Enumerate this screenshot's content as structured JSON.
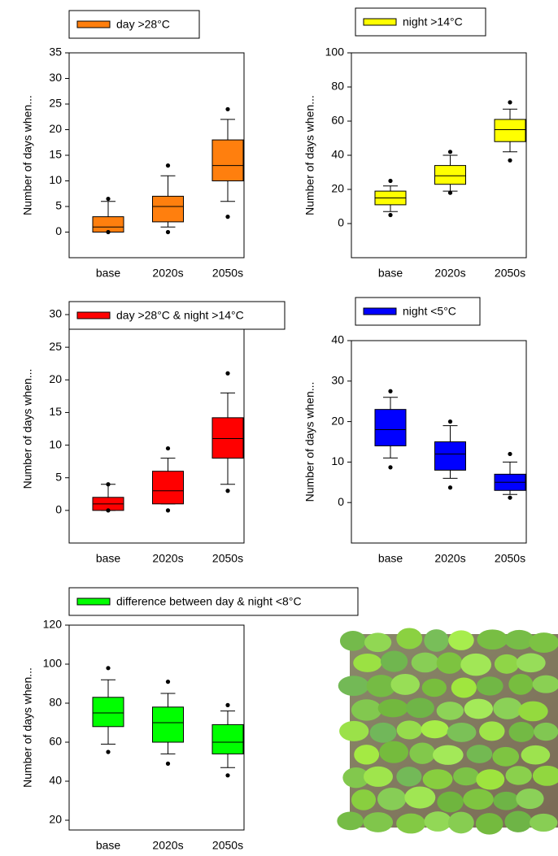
{
  "chart_data": [
    {
      "type": "box",
      "y_label": "Number of days when...",
      "categories": [
        "base",
        "2020s",
        "2050s"
      ],
      "ylim": [
        -5,
        35
      ],
      "yticks": [
        0,
        5,
        10,
        15,
        20,
        25,
        30,
        35
      ],
      "series": [
        {
          "name": "day >28°C",
          "color": "#ff7f0e",
          "boxes": [
            {
              "whisker_low": 0,
              "q1": 0,
              "median": 1,
              "q3": 3,
              "whisker_high": 6,
              "outliers": [
                6.5,
                0
              ]
            },
            {
              "whisker_low": 1,
              "q1": 2,
              "median": 5,
              "q3": 7,
              "whisker_high": 11,
              "outliers": [
                13,
                0
              ]
            },
            {
              "whisker_low": 6,
              "q1": 10,
              "median": 13,
              "q3": 18,
              "whisker_high": 22,
              "outliers": [
                24,
                3
              ]
            }
          ]
        }
      ]
    },
    {
      "type": "box",
      "y_label": "Number of days when...",
      "categories": [
        "base",
        "2020s",
        "2050s"
      ],
      "ylim": [
        -20,
        100
      ],
      "yticks": [
        0,
        20,
        40,
        60,
        80,
        100
      ],
      "series": [
        {
          "name": "night >14°C",
          "color": "#ffff00",
          "boxes": [
            {
              "whisker_low": 7,
              "q1": 11,
              "median": 15,
              "q3": 19,
              "whisker_high": 22,
              "outliers": [
                25,
                5
              ]
            },
            {
              "whisker_low": 19,
              "q1": 23,
              "median": 28,
              "q3": 34,
              "whisker_high": 40,
              "outliers": [
                42,
                18
              ]
            },
            {
              "whisker_low": 42,
              "q1": 48,
              "median": 55,
              "q3": 61,
              "whisker_high": 67,
              "outliers": [
                71,
                37
              ]
            }
          ]
        }
      ]
    },
    {
      "type": "box",
      "y_label": "Number of days when...",
      "categories": [
        "base",
        "2020s",
        "2050s"
      ],
      "ylim": [
        -5,
        30
      ],
      "yticks": [
        0,
        5,
        10,
        15,
        20,
        25,
        30
      ],
      "series": [
        {
          "name": "day >28°C & night >14°C",
          "color": "#ff0000",
          "boxes": [
            {
              "whisker_low": 0,
              "q1": 0,
              "median": 1,
              "q3": 2,
              "whisker_high": 4,
              "outliers": [
                4,
                0
              ]
            },
            {
              "whisker_low": 1,
              "q1": 1,
              "median": 3,
              "q3": 6,
              "whisker_high": 8,
              "outliers": [
                9.5,
                0
              ]
            },
            {
              "whisker_low": 4,
              "q1": 8,
              "median": 11,
              "q3": 14.2,
              "whisker_high": 18,
              "outliers": [
                21,
                3
              ]
            }
          ]
        }
      ]
    },
    {
      "type": "box",
      "y_label": "Number of days when...",
      "categories": [
        "base",
        "2020s",
        "2050s"
      ],
      "ylim": [
        -10,
        40
      ],
      "yticks": [
        0,
        10,
        20,
        30,
        40
      ],
      "series": [
        {
          "name": "night <5°C",
          "color": "#0000ff",
          "boxes": [
            {
              "whisker_low": 11,
              "q1": 14,
              "median": 18,
              "q3": 23,
              "whisker_high": 26,
              "outliers": [
                27.5,
                8.7
              ]
            },
            {
              "whisker_low": 6,
              "q1": 8,
              "median": 12,
              "q3": 15,
              "whisker_high": 19,
              "outliers": [
                20,
                3.7
              ]
            },
            {
              "whisker_low": 2,
              "q1": 3,
              "median": 5,
              "q3": 7,
              "whisker_high": 10,
              "outliers": [
                12,
                1.2
              ]
            }
          ]
        }
      ]
    },
    {
      "type": "box",
      "y_label": "Number of days when...",
      "categories": [
        "base",
        "2020s",
        "2050s"
      ],
      "ylim": [
        15,
        120
      ],
      "yticks": [
        20,
        40,
        60,
        80,
        100,
        120
      ],
      "series": [
        {
          "name": "difference between day & night <8°C",
          "color": "#00ff00",
          "boxes": [
            {
              "whisker_low": 59,
              "q1": 68,
              "median": 75,
              "q3": 83,
              "whisker_high": 92,
              "outliers": [
                98,
                55
              ]
            },
            {
              "whisker_low": 54,
              "q1": 60,
              "median": 70,
              "q3": 78,
              "whisker_high": 85,
              "outliers": [
                91,
                49
              ]
            },
            {
              "whisker_low": 47,
              "q1": 54,
              "median": 60,
              "q3": 69,
              "whisker_high": 76,
              "outliers": [
                79,
                43
              ]
            }
          ]
        }
      ]
    }
  ]
}
